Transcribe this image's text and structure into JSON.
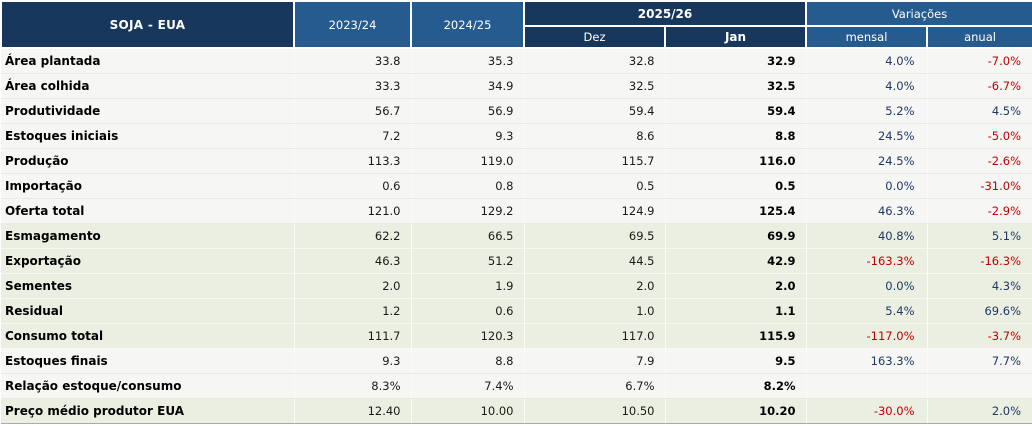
{
  "colors": {
    "header_dark_navy": "#17375D",
    "header_medium_blue": "#265B8F",
    "header_text": "#FFFFFF",
    "positive_variation_text": "#1F3864",
    "negative_variation_text": "#C00000",
    "row_band_plain": "#F6F6F4",
    "row_band_green": "#EBEFE1"
  },
  "chart_data": {
    "type": "table",
    "title": "SOJA - EUA",
    "header": {
      "col_2023_24": "2023/24",
      "col_2024_25": "2024/25",
      "group_2025_26": "2025/26",
      "sub_dez": "Dez",
      "sub_jan": "Jan",
      "group_variacoes": "Variações",
      "sub_mensal": "mensal",
      "sub_anual": "anual"
    },
    "rows": [
      {
        "label": "Área plantada",
        "y2324": "33.8",
        "y2425": "35.3",
        "dez": "32.8",
        "jan": "32.9",
        "mensal": "4.0%",
        "anual": "-7.0%",
        "band": "plain"
      },
      {
        "label": "Área colhida",
        "y2324": "33.3",
        "y2425": "34.9",
        "dez": "32.5",
        "jan": "32.5",
        "mensal": "4.0%",
        "anual": "-6.7%",
        "band": "plain"
      },
      {
        "label": "Produtividade",
        "y2324": "56.7",
        "y2425": "56.9",
        "dez": "59.4",
        "jan": "59.4",
        "mensal": "5.2%",
        "anual": "4.5%",
        "band": "plain"
      },
      {
        "label": "Estoques iniciais",
        "y2324": "7.2",
        "y2425": "9.3",
        "dez": "8.6",
        "jan": "8.8",
        "mensal": "24.5%",
        "anual": "-5.0%",
        "band": "plain"
      },
      {
        "label": "Produção",
        "y2324": "113.3",
        "y2425": "119.0",
        "dez": "115.7",
        "jan": "116.0",
        "mensal": "24.5%",
        "anual": "-2.6%",
        "band": "plain"
      },
      {
        "label": "Importação",
        "y2324": "0.6",
        "y2425": "0.8",
        "dez": "0.5",
        "jan": "0.5",
        "mensal": "0.0%",
        "anual": "-31.0%",
        "band": "plain"
      },
      {
        "label": "Oferta total",
        "y2324": "121.0",
        "y2425": "129.2",
        "dez": "124.9",
        "jan": "125.4",
        "mensal": "46.3%",
        "anual": "-2.9%",
        "band": "plain"
      },
      {
        "label": "Esmagamento",
        "y2324": "62.2",
        "y2425": "66.5",
        "dez": "69.5",
        "jan": "69.9",
        "mensal": "40.8%",
        "anual": "5.1%",
        "band": "green"
      },
      {
        "label": "Exportação",
        "y2324": "46.3",
        "y2425": "51.2",
        "dez": "44.5",
        "jan": "42.9",
        "mensal": "-163.3%",
        "anual": "-16.3%",
        "band": "green"
      },
      {
        "label": "Sementes",
        "y2324": "2.0",
        "y2425": "1.9",
        "dez": "2.0",
        "jan": "2.0",
        "mensal": "0.0%",
        "anual": "4.3%",
        "band": "green"
      },
      {
        "label": "Residual",
        "y2324": "1.2",
        "y2425": "0.6",
        "dez": "1.0",
        "jan": "1.1",
        "mensal": "5.4%",
        "anual": "69.6%",
        "band": "green"
      },
      {
        "label": "Consumo total",
        "y2324": "111.7",
        "y2425": "120.3",
        "dez": "117.0",
        "jan": "115.9",
        "mensal": "-117.0%",
        "anual": "-3.7%",
        "band": "green"
      },
      {
        "label": "Estoques finais",
        "y2324": "9.3",
        "y2425": "8.8",
        "dez": "7.9",
        "jan": "9.5",
        "mensal": "163.3%",
        "anual": "7.7%",
        "band": "plain"
      },
      {
        "label": "Relação estoque/consumo",
        "y2324": "8.3%",
        "y2425": "7.4%",
        "dez": "6.7%",
        "jan": "8.2%",
        "mensal": "",
        "anual": "",
        "band": "plain"
      },
      {
        "label": "Preço médio produtor EUA",
        "y2324": "12.40",
        "y2425": "10.00",
        "dez": "10.50",
        "jan": "10.20",
        "mensal": "-30.0%",
        "anual": "2.0%",
        "band": "green"
      }
    ]
  }
}
